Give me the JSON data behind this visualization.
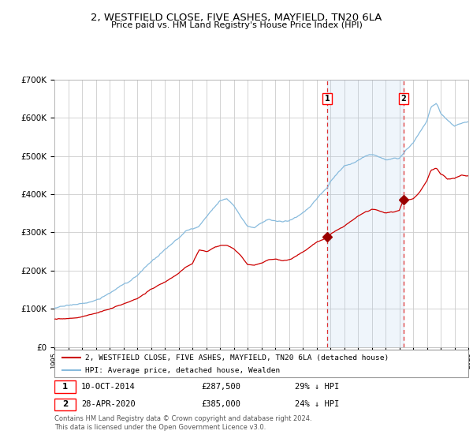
{
  "title": "2, WESTFIELD CLOSE, FIVE ASHES, MAYFIELD, TN20 6LA",
  "subtitle": "Price paid vs. HM Land Registry's House Price Index (HPI)",
  "bg_color": "#ffffff",
  "plot_bg_color": "#ffffff",
  "grid_color": "#cccccc",
  "hpi_color": "#88bbdd",
  "price_color": "#cc0000",
  "highlight_color": "#ddeeff",
  "dashed_color": "#dd3333",
  "marker_color": "#990000",
  "year_start": 1995,
  "year_end": 2025,
  "ylim_max": 700000,
  "sale1_year": 2014.78,
  "sale1_price": 287500,
  "sale2_year": 2020.32,
  "sale2_price": 385000,
  "legend_line1": "2, WESTFIELD CLOSE, FIVE ASHES, MAYFIELD, TN20 6LA (detached house)",
  "legend_line2": "HPI: Average price, detached house, Wealden",
  "table_date1": "10-OCT-2014",
  "table_price1": "£287,500",
  "table_pct1": "29% ↓ HPI",
  "table_date2": "28-APR-2020",
  "table_price2": "£385,000",
  "table_pct2": "24% ↓ HPI",
  "footnote": "Contains HM Land Registry data © Crown copyright and database right 2024.\nThis data is licensed under the Open Government Licence v3.0."
}
